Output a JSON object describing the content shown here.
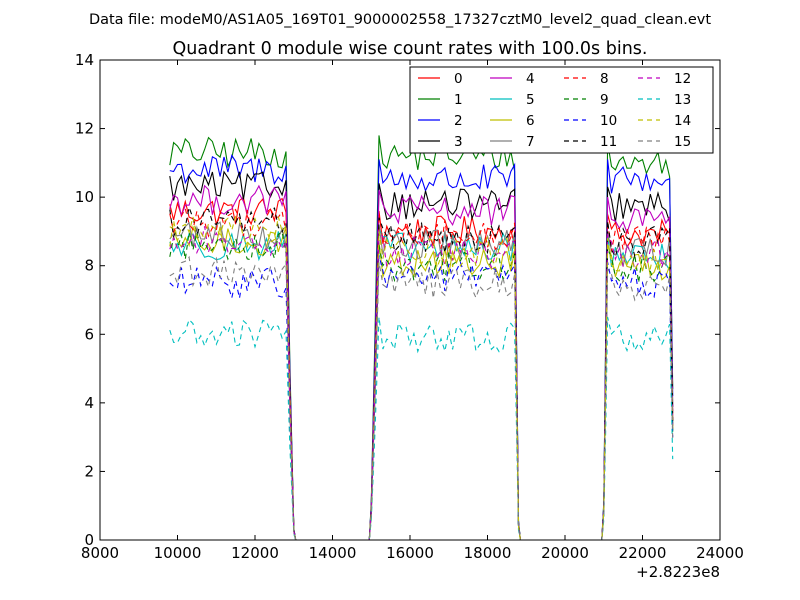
{
  "figure": {
    "suptitle": "Data file: modeM0/AS1A05_169T01_9000002558_17327cztM0_level2_quad_clean.evt",
    "offset_label": "+2.8223e8"
  },
  "chart_data": {
    "type": "line",
    "title": "Quadrant 0 module wise count rates with 100.0s bins.",
    "xlabel": "",
    "ylabel": "",
    "xlim": [
      8000,
      24000
    ],
    "ylim": [
      0,
      14
    ],
    "x_offset": 282230000,
    "xticks": [
      8000,
      10000,
      12000,
      14000,
      16000,
      18000,
      20000,
      22000,
      24000
    ],
    "xtick_labels": [
      "8000",
      "10000",
      "12000",
      "14000",
      "16000",
      "18000",
      "20000",
      "22000",
      "24000"
    ],
    "yticks": [
      0,
      2,
      4,
      6,
      8,
      10,
      12,
      14
    ],
    "ytick_labels": [
      "0",
      "2",
      "4",
      "6",
      "8",
      "10",
      "12",
      "14"
    ],
    "grid": false,
    "legend_position": "top-right",
    "legend_columns": 4,
    "segments": [
      {
        "start": 9800,
        "end": 12800,
        "drop": [
          12900,
          13000,
          13050
        ],
        "drop_frac": [
          0.45,
          0.03
        ]
      },
      {
        "start": 15200,
        "end": 18700,
        "rise": [
          14950,
          15000,
          15100
        ],
        "rise_frac": [
          0.0,
          0.1,
          0.55
        ],
        "drop": [
          18800,
          18850
        ],
        "drop_frac": [
          0.05
        ]
      },
      {
        "start": 21100,
        "end": 22700,
        "rise": [
          20950,
          21000,
          21050
        ],
        "rise_frac": [
          0.0,
          0.1,
          0.55
        ],
        "drop": [
          22780
        ],
        "drop_frac": [
          0.4
        ]
      }
    ],
    "gaps": [
      [
        13050,
        14950
      ],
      [
        18850,
        20950
      ]
    ],
    "bin_width": 100,
    "series": [
      {
        "name": "0",
        "color": "#ff0000",
        "dash": "solid",
        "levels": [
          9.6,
          9.0,
          8.9
        ]
      },
      {
        "name": "1",
        "color": "#008000",
        "dash": "solid",
        "levels": [
          11.3,
          11.2,
          11.0
        ]
      },
      {
        "name": "2",
        "color": "#0000ff",
        "dash": "solid",
        "levels": [
          10.8,
          10.5,
          10.5
        ]
      },
      {
        "name": "3",
        "color": "#000000",
        "dash": "solid",
        "levels": [
          10.3,
          9.8,
          9.7
        ]
      },
      {
        "name": "4",
        "color": "#bf00bf",
        "dash": "solid",
        "levels": [
          9.9,
          9.6,
          9.4
        ]
      },
      {
        "name": "5",
        "color": "#00bfbf",
        "dash": "solid",
        "levels": [
          8.6,
          8.5,
          8.3
        ]
      },
      {
        "name": "6",
        "color": "#bfbf00",
        "dash": "solid",
        "levels": [
          8.7,
          8.1,
          8.0
        ]
      },
      {
        "name": "7",
        "color": "#808080",
        "dash": "solid",
        "levels": [
          8.9,
          8.6,
          8.4
        ]
      },
      {
        "name": "8",
        "color": "#ff0000",
        "dash": "dashed",
        "levels": [
          9.3,
          8.9,
          8.7
        ]
      },
      {
        "name": "9",
        "color": "#008000",
        "dash": "dashed",
        "levels": [
          8.6,
          8.0,
          7.9
        ]
      },
      {
        "name": "10",
        "color": "#0000ff",
        "dash": "dashed",
        "levels": [
          7.5,
          7.7,
          7.5
        ]
      },
      {
        "name": "11",
        "color": "#000000",
        "dash": "dashed",
        "levels": [
          9.3,
          8.8,
          8.7
        ]
      },
      {
        "name": "12",
        "color": "#bf00bf",
        "dash": "dashed",
        "levels": [
          8.7,
          8.4,
          8.3
        ]
      },
      {
        "name": "13",
        "color": "#00bfbf",
        "dash": "dashed",
        "levels": [
          6.0,
          5.9,
          5.9
        ]
      },
      {
        "name": "14",
        "color": "#bfbf00",
        "dash": "dashed",
        "levels": [
          9.0,
          8.4,
          8.2
        ]
      },
      {
        "name": "15",
        "color": "#808080",
        "dash": "dashed",
        "levels": [
          7.8,
          7.5,
          7.3
        ]
      }
    ]
  }
}
